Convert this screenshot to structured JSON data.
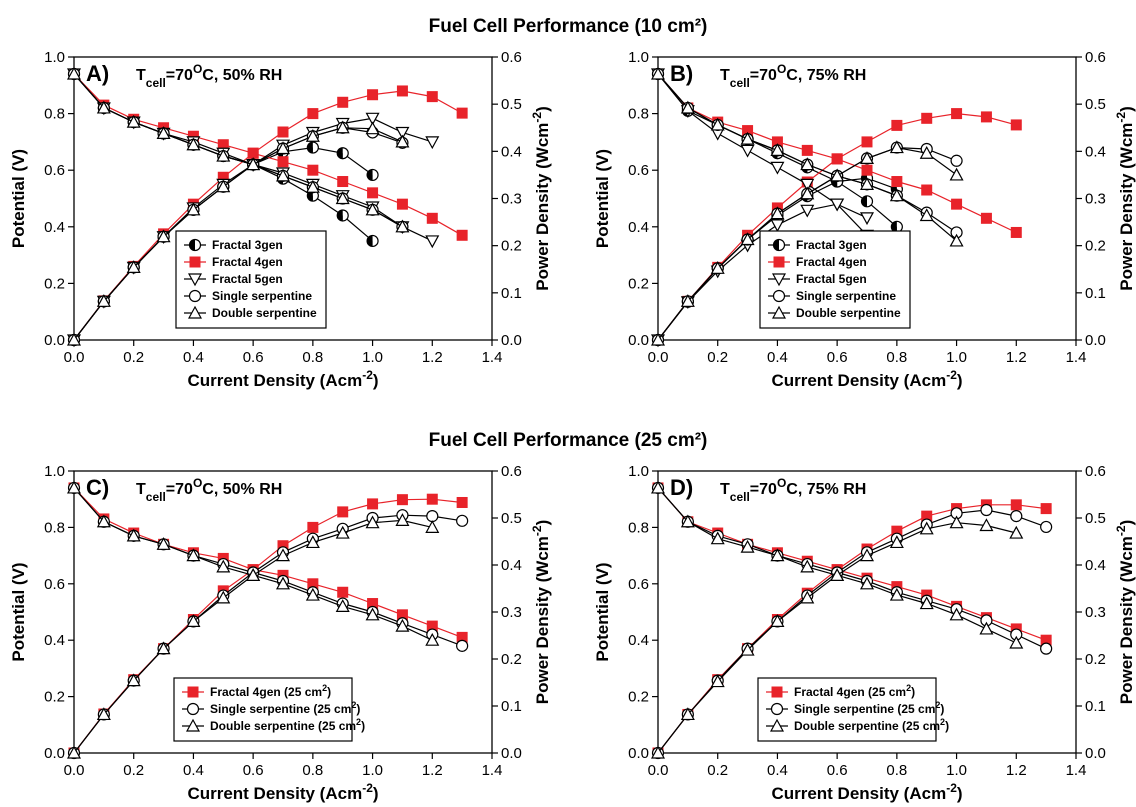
{
  "figure": {
    "title_top": "Fuel Cell Performance (10 cm²)",
    "title_bottom": "Fuel Cell Performance (25 cm²)"
  },
  "chart_data": [
    {
      "id": "A",
      "type": "line",
      "panel_label": "A)",
      "condition": "Tcell=70°C, 50% RH",
      "xlabel": "Current Density (Acm-2)",
      "ylabel_left": "Potential (V)",
      "ylabel_right": "Power Density (Wcm-2)",
      "xlim": [
        0,
        1.4
      ],
      "ylim_left": [
        0,
        1.0
      ],
      "ylim_right": [
        0,
        0.6
      ],
      "xticks": [
        "0.0",
        "0.2",
        "0.4",
        "0.6",
        "0.8",
        "1.0",
        "1.2",
        "1.4"
      ],
      "yticks_left": [
        "0.0",
        "0.2",
        "0.4",
        "0.6",
        "0.8",
        "1.0"
      ],
      "yticks_right": [
        "0.0",
        "0.1",
        "0.2",
        "0.3",
        "0.4",
        "0.5",
        "0.6"
      ],
      "legend_position": "bottom-center",
      "series": [
        {
          "name": "Fractal 3gen",
          "marker": "halfcircle",
          "color": "#000000",
          "x": [
            0,
            0.1,
            0.2,
            0.3,
            0.4,
            0.5,
            0.6,
            0.7,
            0.8,
            0.9,
            1.0
          ],
          "potential": [
            0.94,
            0.82,
            0.77,
            0.73,
            0.69,
            0.65,
            0.62,
            0.57,
            0.51,
            0.44,
            0.35
          ],
          "power": [
            0,
            0.082,
            0.154,
            0.219,
            0.276,
            0.325,
            0.372,
            0.399,
            0.408,
            0.396,
            0.35
          ]
        },
        {
          "name": "Fractal 4gen",
          "marker": "square",
          "color": "#e8232a",
          "x": [
            0,
            0.1,
            0.2,
            0.3,
            0.4,
            0.5,
            0.6,
            0.7,
            0.8,
            0.9,
            1.0,
            1.1,
            1.2,
            1.3
          ],
          "potential": [
            0.94,
            0.83,
            0.78,
            0.75,
            0.72,
            0.69,
            0.66,
            0.63,
            0.6,
            0.56,
            0.52,
            0.48,
            0.43,
            0.37
          ],
          "power": [
            0,
            0.083,
            0.156,
            0.225,
            0.288,
            0.345,
            0.396,
            0.441,
            0.48,
            0.504,
            0.52,
            0.528,
            0.516,
            0.481
          ]
        },
        {
          "name": "Fractal 5gen",
          "marker": "triangle-down",
          "color": "#000000",
          "x": [
            0,
            0.1,
            0.2,
            0.3,
            0.4,
            0.5,
            0.6,
            0.7,
            0.8,
            0.9,
            1.0,
            1.1,
            1.2
          ],
          "potential": [
            0.94,
            0.82,
            0.77,
            0.73,
            0.7,
            0.66,
            0.62,
            0.59,
            0.55,
            0.51,
            0.47,
            0.4,
            0.35
          ],
          "power": [
            0,
            0.082,
            0.154,
            0.219,
            0.28,
            0.33,
            0.372,
            0.413,
            0.44,
            0.459,
            0.47,
            0.44,
            0.42
          ]
        },
        {
          "name": "Single serpentine",
          "marker": "circle",
          "color": "#000000",
          "x": [
            0,
            0.1,
            0.2,
            0.3,
            0.4,
            0.5,
            0.6,
            0.7,
            0.8,
            0.9,
            1.0,
            1.1
          ],
          "potential": [
            0.94,
            0.82,
            0.77,
            0.73,
            0.69,
            0.65,
            0.62,
            0.58,
            0.54,
            0.5,
            0.46,
            0.4
          ],
          "power": [
            0,
            0.082,
            0.154,
            0.219,
            0.276,
            0.325,
            0.372,
            0.406,
            0.432,
            0.45,
            0.44,
            0.418
          ]
        },
        {
          "name": "Double serpentine",
          "marker": "triangle-up",
          "color": "#000000",
          "x": [
            0,
            0.1,
            0.2,
            0.3,
            0.4,
            0.5,
            0.6,
            0.7,
            0.8,
            0.9,
            1.0,
            1.1
          ],
          "potential": [
            0.94,
            0.82,
            0.77,
            0.73,
            0.69,
            0.65,
            0.62,
            0.58,
            0.54,
            0.5,
            0.46,
            0.4
          ],
          "power": [
            0,
            0.082,
            0.154,
            0.219,
            0.276,
            0.325,
            0.372,
            0.406,
            0.432,
            0.45,
            0.448,
            0.42
          ]
        }
      ]
    },
    {
      "id": "B",
      "type": "line",
      "panel_label": "B)",
      "condition": "Tcell=70°C, 75% RH",
      "xlabel": "Current Density (Acm-2)",
      "ylabel_left": "Potential (V)",
      "ylabel_right": "Power Density (Wcm-2)",
      "xlim": [
        0,
        1.4
      ],
      "ylim_left": [
        0,
        1.0
      ],
      "ylim_right": [
        0,
        0.6
      ],
      "xticks": [
        "0.0",
        "0.2",
        "0.4",
        "0.6",
        "0.8",
        "1.0",
        "1.2",
        "1.4"
      ],
      "yticks_left": [
        "0.0",
        "0.2",
        "0.4",
        "0.6",
        "0.8",
        "1.0"
      ],
      "yticks_right": [
        "0.0",
        "0.1",
        "0.2",
        "0.3",
        "0.4",
        "0.5",
        "0.6"
      ],
      "legend_position": "bottom-center",
      "series": [
        {
          "name": "Fractal 3gen",
          "marker": "halfcircle",
          "color": "#000000",
          "x": [
            0,
            0.1,
            0.2,
            0.3,
            0.4,
            0.5,
            0.6,
            0.7,
            0.8
          ],
          "potential": [
            0.94,
            0.81,
            0.76,
            0.71,
            0.66,
            0.61,
            0.56,
            0.49,
            0.4
          ],
          "power": [
            0,
            0.081,
            0.152,
            0.213,
            0.264,
            0.305,
            0.336,
            0.343,
            0.32
          ]
        },
        {
          "name": "Fractal 4gen",
          "marker": "square",
          "color": "#e8232a",
          "x": [
            0,
            0.1,
            0.2,
            0.3,
            0.4,
            0.5,
            0.6,
            0.7,
            0.8,
            0.9,
            1.0,
            1.1,
            1.2
          ],
          "potential": [
            0.94,
            0.82,
            0.77,
            0.74,
            0.7,
            0.67,
            0.64,
            0.6,
            0.56,
            0.53,
            0.48,
            0.43,
            0.38
          ],
          "power": [
            0,
            0.082,
            0.154,
            0.222,
            0.28,
            0.335,
            0.384,
            0.42,
            0.455,
            0.47,
            0.48,
            0.473,
            0.456
          ]
        },
        {
          "name": "Fractal 5gen",
          "marker": "triangle-down",
          "color": "#000000",
          "x": [
            0,
            0.1,
            0.2,
            0.3,
            0.4,
            0.5,
            0.6,
            0.7
          ],
          "potential": [
            0.94,
            0.81,
            0.73,
            0.67,
            0.61,
            0.55,
            0.48,
            0.37
          ],
          "power": [
            0,
            0.081,
            0.146,
            0.201,
            0.244,
            0.275,
            0.288,
            0.259
          ]
        },
        {
          "name": "Single serpentine",
          "marker": "circle",
          "color": "#000000",
          "x": [
            0,
            0.1,
            0.2,
            0.3,
            0.4,
            0.5,
            0.6,
            0.7,
            0.8,
            0.9,
            1.0
          ],
          "potential": [
            0.94,
            0.82,
            0.76,
            0.71,
            0.67,
            0.62,
            0.58,
            0.55,
            0.51,
            0.45,
            0.38
          ],
          "power": [
            0,
            0.082,
            0.152,
            0.213,
            0.268,
            0.31,
            0.348,
            0.385,
            0.408,
            0.405,
            0.38
          ]
        },
        {
          "name": "Double serpentine",
          "marker": "triangle-up",
          "color": "#000000",
          "x": [
            0,
            0.1,
            0.2,
            0.3,
            0.4,
            0.5,
            0.6,
            0.7,
            0.8,
            0.9,
            1.0
          ],
          "potential": [
            0.94,
            0.82,
            0.76,
            0.71,
            0.67,
            0.62,
            0.58,
            0.55,
            0.51,
            0.44,
            0.35
          ],
          "power": [
            0,
            0.082,
            0.152,
            0.213,
            0.268,
            0.31,
            0.348,
            0.385,
            0.408,
            0.396,
            0.35
          ]
        }
      ]
    },
    {
      "id": "C",
      "type": "line",
      "panel_label": "C)",
      "condition": "Tcell=70°C, 50% RH",
      "xlabel": "Current Density (Acm-2)",
      "ylabel_left": "Potential (V)",
      "ylabel_right": "Power Density (Wcm-2)",
      "xlim": [
        0,
        1.4
      ],
      "ylim_left": [
        0,
        1.0
      ],
      "ylim_right": [
        0,
        0.6
      ],
      "xticks": [
        "0.0",
        "0.2",
        "0.4",
        "0.6",
        "0.8",
        "1.0",
        "1.2",
        "1.4"
      ],
      "yticks_left": [
        "0.0",
        "0.2",
        "0.4",
        "0.6",
        "0.8",
        "1.0"
      ],
      "yticks_right": [
        "0.0",
        "0.1",
        "0.2",
        "0.3",
        "0.4",
        "0.5",
        "0.6"
      ],
      "legend_position": "bottom-center",
      "series": [
        {
          "name": "Fractal 4gen (25 cm²)",
          "marker": "square",
          "color": "#e8232a",
          "x": [
            0,
            0.1,
            0.2,
            0.3,
            0.4,
            0.5,
            0.6,
            0.7,
            0.8,
            0.9,
            1.0,
            1.1,
            1.2,
            1.3
          ],
          "potential": [
            0.94,
            0.83,
            0.78,
            0.74,
            0.71,
            0.69,
            0.65,
            0.63,
            0.6,
            0.57,
            0.53,
            0.49,
            0.45,
            0.41
          ],
          "power": [
            0,
            0.083,
            0.156,
            0.222,
            0.284,
            0.345,
            0.39,
            0.441,
            0.48,
            0.513,
            0.53,
            0.539,
            0.54,
            0.533
          ]
        },
        {
          "name": "Single serpentine (25 cm²)",
          "marker": "circle",
          "color": "#000000",
          "x": [
            0,
            0.1,
            0.2,
            0.3,
            0.4,
            0.5,
            0.6,
            0.7,
            0.8,
            0.9,
            1.0,
            1.1,
            1.2,
            1.3
          ],
          "potential": [
            0.94,
            0.82,
            0.77,
            0.74,
            0.7,
            0.67,
            0.64,
            0.61,
            0.57,
            0.53,
            0.5,
            0.46,
            0.42,
            0.38
          ],
          "power": [
            0,
            0.082,
            0.154,
            0.222,
            0.28,
            0.335,
            0.384,
            0.427,
            0.456,
            0.477,
            0.5,
            0.506,
            0.504,
            0.494
          ]
        },
        {
          "name": "Double serpentine (25 cm²)",
          "marker": "triangle-up",
          "color": "#000000",
          "x": [
            0,
            0.1,
            0.2,
            0.3,
            0.4,
            0.5,
            0.6,
            0.7,
            0.8,
            0.9,
            1.0,
            1.1,
            1.2
          ],
          "potential": [
            0.94,
            0.82,
            0.77,
            0.74,
            0.7,
            0.66,
            0.63,
            0.6,
            0.56,
            0.52,
            0.49,
            0.45,
            0.4
          ],
          "power": [
            0,
            0.082,
            0.154,
            0.222,
            0.28,
            0.33,
            0.378,
            0.42,
            0.448,
            0.468,
            0.49,
            0.495,
            0.48
          ]
        }
      ]
    },
    {
      "id": "D",
      "type": "line",
      "panel_label": "D)",
      "condition": "Tcell=70°C, 75% RH",
      "xlabel": "Current Density (Acm-2)",
      "ylabel_left": "Potential (V)",
      "ylabel_right": "Power Density (Wcm-2)",
      "xlim": [
        0,
        1.4
      ],
      "ylim_left": [
        0,
        1.0
      ],
      "ylim_right": [
        0,
        0.6
      ],
      "xticks": [
        "0.0",
        "0.2",
        "0.4",
        "0.6",
        "0.8",
        "1.0",
        "1.2",
        "1.4"
      ],
      "yticks_left": [
        "0.0",
        "0.2",
        "0.4",
        "0.6",
        "0.8",
        "1.0"
      ],
      "yticks_right": [
        "0.0",
        "0.1",
        "0.2",
        "0.3",
        "0.4",
        "0.5",
        "0.6"
      ],
      "legend_position": "bottom-center",
      "series": [
        {
          "name": "Fractal 4gen (25 cm²)",
          "marker": "square",
          "color": "#e8232a",
          "x": [
            0,
            0.1,
            0.2,
            0.3,
            0.4,
            0.5,
            0.6,
            0.7,
            0.8,
            0.9,
            1.0,
            1.1,
            1.2,
            1.3
          ],
          "potential": [
            0.94,
            0.82,
            0.78,
            0.74,
            0.71,
            0.68,
            0.65,
            0.62,
            0.59,
            0.56,
            0.52,
            0.48,
            0.44,
            0.4
          ],
          "power": [
            0,
            0.082,
            0.156,
            0.222,
            0.284,
            0.34,
            0.39,
            0.434,
            0.472,
            0.504,
            0.52,
            0.528,
            0.528,
            0.52
          ]
        },
        {
          "name": "Single serpentine (25 cm²)",
          "marker": "circle",
          "color": "#000000",
          "x": [
            0,
            0.1,
            0.2,
            0.3,
            0.4,
            0.5,
            0.6,
            0.7,
            0.8,
            0.9,
            1.0,
            1.1,
            1.2,
            1.3
          ],
          "potential": [
            0.94,
            0.82,
            0.77,
            0.74,
            0.7,
            0.67,
            0.64,
            0.61,
            0.57,
            0.54,
            0.51,
            0.47,
            0.42,
            0.37
          ],
          "power": [
            0,
            0.082,
            0.154,
            0.222,
            0.28,
            0.335,
            0.384,
            0.427,
            0.456,
            0.486,
            0.51,
            0.517,
            0.504,
            0.481
          ]
        },
        {
          "name": "Double serpentine (25 cm²)",
          "marker": "triangle-up",
          "color": "#000000",
          "x": [
            0,
            0.1,
            0.2,
            0.3,
            0.4,
            0.5,
            0.6,
            0.7,
            0.8,
            0.9,
            1.0,
            1.1,
            1.2
          ],
          "potential": [
            0.94,
            0.82,
            0.76,
            0.73,
            0.7,
            0.66,
            0.63,
            0.6,
            0.56,
            0.53,
            0.49,
            0.44,
            0.39
          ],
          "power": [
            0,
            0.082,
            0.152,
            0.219,
            0.28,
            0.33,
            0.378,
            0.42,
            0.448,
            0.477,
            0.49,
            0.484,
            0.468
          ]
        }
      ]
    }
  ]
}
